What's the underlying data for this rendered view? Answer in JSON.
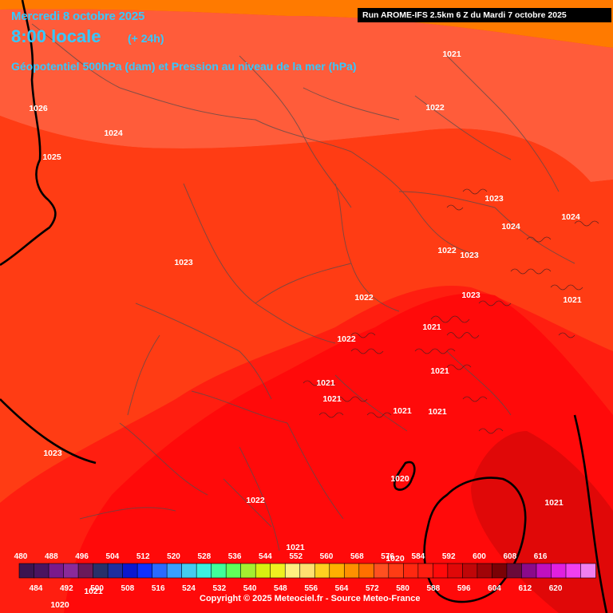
{
  "header": {
    "date": "Mercredi 8 octobre 2025",
    "time": "8:00 locale",
    "lead": "(+ 24h)",
    "field": "Géopotentiel 500hPa (dam) et Pression au niveau de la mer (hPa)"
  },
  "run_info": "Run AROME-IFS 2.5km 6 Z du Mardi 7 octobre 2025",
  "footer": {
    "copyright": "Copyright © 2025 Meteociel.fr - Source Meteo-France"
  },
  "colors": {
    "bands": [
      "#ff7a00",
      "#ff5c3a",
      "#ff3c14",
      "#ff1e10",
      "#ff0a0a",
      "#e00808"
    ],
    "coastline": "#000000",
    "borders": "#555555",
    "title_text": "#36c8ff"
  },
  "legend": {
    "top_labels": [
      "480",
      "488",
      "496",
      "504",
      "512",
      "520",
      "528",
      "536",
      "544",
      "552",
      "560",
      "568",
      "576",
      "584",
      "592",
      "600",
      "608",
      "616"
    ],
    "bottom_labels": [
      "484",
      "492",
      "500",
      "508",
      "516",
      "524",
      "532",
      "540",
      "548",
      "556",
      "564",
      "572",
      "580",
      "588",
      "596",
      "604",
      "612",
      "620"
    ],
    "colors": [
      "#3c1450",
      "#4a1460",
      "#7a1a8c",
      "#8a2a9a",
      "#6a1a5a",
      "#28306a",
      "#1e2ea0",
      "#0a18d0",
      "#0f30ff",
      "#2a6aff",
      "#3aa0ff",
      "#44ccf0",
      "#3cf0e0",
      "#40ff9a",
      "#60ff5a",
      "#a4f030",
      "#d8f010",
      "#f0f020",
      "#fff080",
      "#ffe070",
      "#ffd020",
      "#ffb000",
      "#ff9000",
      "#ff7000",
      "#ff5020",
      "#ff3c14",
      "#ff2810",
      "#ff1e10",
      "#ff0a0a",
      "#e00808",
      "#c00608",
      "#a00408",
      "#7a0206",
      "#6a0a3a",
      "#8a0a8a",
      "#c010c0",
      "#e020e0",
      "#f040f0",
      "#f080f0"
    ]
  },
  "isobar_labels": [
    {
      "value": "1021"
    },
    {
      "value": "1026"
    },
    {
      "value": "1024"
    },
    {
      "value": "1022"
    },
    {
      "value": "1025"
    },
    {
      "value": "1023"
    },
    {
      "value": "1024"
    },
    {
      "value": "1024"
    },
    {
      "value": "1022"
    },
    {
      "value": "1023"
    },
    {
      "value": "1023"
    },
    {
      "value": "1022"
    },
    {
      "value": "1023"
    },
    {
      "value": "1021"
    },
    {
      "value": "1021"
    },
    {
      "value": "1022"
    },
    {
      "value": "1021"
    },
    {
      "value": "1021"
    },
    {
      "value": "1021"
    },
    {
      "value": "1021"
    },
    {
      "value": "1021"
    },
    {
      "value": "1023"
    },
    {
      "value": "1020"
    },
    {
      "value": "1022"
    },
    {
      "value": "1021"
    },
    {
      "value": "1021"
    },
    {
      "value": "1020"
    },
    {
      "value": "1020"
    },
    {
      "value": "1021"
    }
  ]
}
